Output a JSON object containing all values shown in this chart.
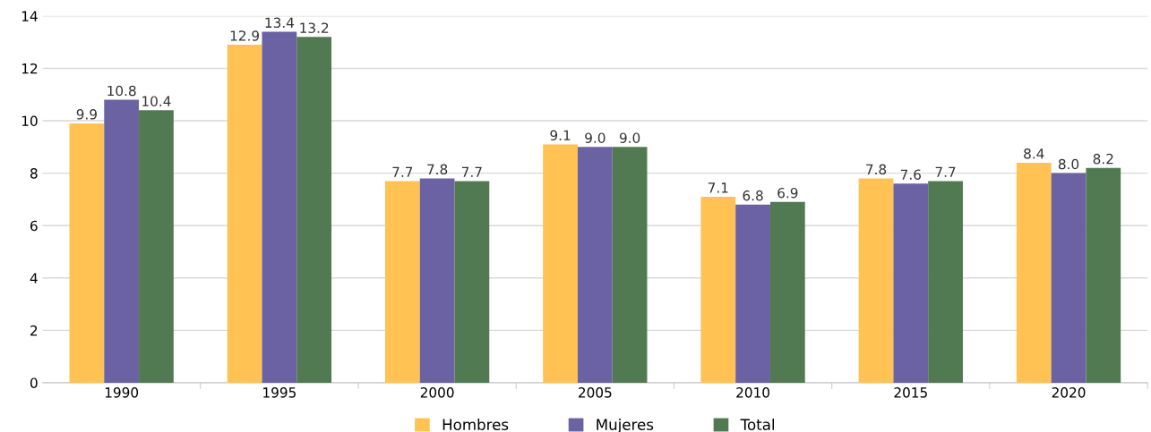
{
  "chart_data": {
    "type": "bar",
    "categories": [
      "1990",
      "1995",
      "2000",
      "2005",
      "2010",
      "2015",
      "2020"
    ],
    "series": [
      {
        "name": "Hombres",
        "color": "#ffc253",
        "values": [
          9.9,
          12.9,
          7.7,
          9.1,
          7.1,
          7.8,
          8.4
        ],
        "value_labels": [
          "9.9",
          "12.9",
          "7.7",
          "9.1",
          "7.1",
          "7.8",
          "8.4"
        ]
      },
      {
        "name": "Mujeres",
        "color": "#6b62a3",
        "values": [
          10.8,
          13.4,
          7.8,
          9.0,
          6.8,
          7.6,
          8.0
        ],
        "value_labels": [
          "10.8",
          "13.4",
          "7.8",
          "9.0",
          "6.8",
          "7.6",
          "8.0"
        ]
      },
      {
        "name": "Total",
        "color": "#527a52",
        "values": [
          10.4,
          13.2,
          7.7,
          9.0,
          6.9,
          7.7,
          8.2
        ],
        "value_labels": [
          "10.4",
          "13.2",
          "7.7",
          "9.0",
          "6.9",
          "7.7",
          "8.2"
        ]
      }
    ],
    "ylim": [
      0,
      14
    ],
    "yticks": [
      0,
      2,
      4,
      6,
      8,
      10,
      12,
      14
    ],
    "grid": "y",
    "legend": "bottom"
  }
}
